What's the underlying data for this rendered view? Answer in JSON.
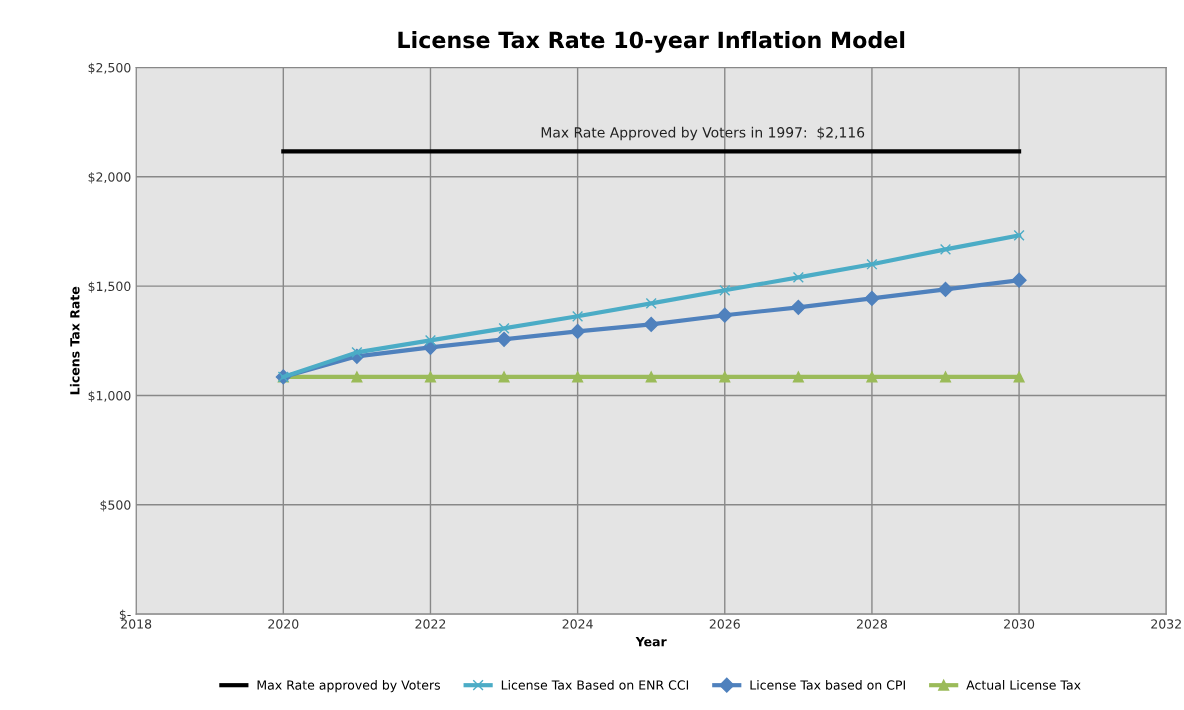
{
  "chart_data": {
    "type": "line",
    "title": "License Tax Rate 10-year Inflation Model",
    "xlabel": "Year",
    "ylabel": "Licens Tax Rate",
    "x": [
      2020,
      2021,
      2022,
      2023,
      2024,
      2025,
      2026,
      2027,
      2028,
      2029,
      2030
    ],
    "series": [
      {
        "name": "Max Rate approved by Voters",
        "color": "#000000",
        "marker": "none",
        "values": [
          2116,
          2116,
          2116,
          2116,
          2116,
          2116,
          2116,
          2116,
          2116,
          2116,
          2116
        ]
      },
      {
        "name": "License Tax Based on ENR CCI",
        "color": "#4bacc6",
        "marker": "cross",
        "values": [
          1085,
          1197,
          1252,
          1307,
          1362,
          1421,
          1481,
          1540,
          1600,
          1668,
          1732
        ]
      },
      {
        "name": "License Tax based on CPI",
        "color": "#4f81bd",
        "marker": "diamond",
        "values": [
          1085,
          1179,
          1220,
          1257,
          1293,
          1325,
          1367,
          1403,
          1444,
          1485,
          1527
        ]
      },
      {
        "name": "Actual License Tax",
        "color": "#9bbb59",
        "marker": "triangle",
        "values": [
          1085,
          1085,
          1085,
          1085,
          1085,
          1085,
          1085,
          1085,
          1085,
          1085,
          1085
        ]
      }
    ],
    "annotations": [
      {
        "text": "Max Rate Approved by Voters in 1997:  $2,116",
        "x": 2025.7,
        "y": 2116
      }
    ],
    "xlim": [
      2018,
      2032
    ],
    "xticks": [
      2018,
      2020,
      2022,
      2024,
      2026,
      2028,
      2030,
      2032
    ],
    "ylim": [
      0,
      2500
    ],
    "yticks": [
      {
        "value": 0,
        "label": "$-"
      },
      {
        "value": 500,
        "label": "$500"
      },
      {
        "value": 1000,
        "label": "$1,000"
      },
      {
        "value": 1500,
        "label": "$1,500"
      },
      {
        "value": 2000,
        "label": "$2,000"
      },
      {
        "value": 2500,
        "label": "$2,500"
      }
    ],
    "grid": true,
    "legend": "bottom",
    "line_style": "solid"
  }
}
